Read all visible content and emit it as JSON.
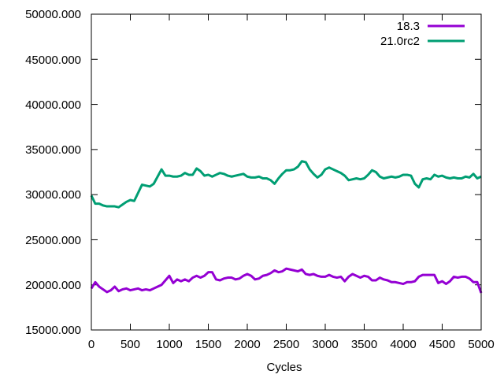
{
  "chart_data": {
    "type": "line",
    "title": "",
    "xlabel": "Cycles",
    "ylabel": "",
    "xlim": [
      0,
      5000
    ],
    "ylim": [
      15000,
      50000
    ],
    "grid": false,
    "legend_position": "top-right",
    "xticks": [
      "0",
      "500",
      "1000",
      "1500",
      "2000",
      "2500",
      "3000",
      "3500",
      "4000",
      "4500",
      "5000"
    ],
    "yticks": [
      "15000.000",
      "20000.000",
      "25000.000",
      "30000.000",
      "35000.000",
      "40000.000",
      "45000.000",
      "50000.000"
    ],
    "x": [
      0,
      50,
      100,
      150,
      200,
      250,
      300,
      350,
      400,
      450,
      500,
      550,
      600,
      650,
      700,
      750,
      800,
      850,
      900,
      950,
      1000,
      1050,
      1100,
      1150,
      1200,
      1250,
      1300,
      1350,
      1400,
      1450,
      1500,
      1550,
      1600,
      1650,
      1700,
      1750,
      1800,
      1850,
      1900,
      1950,
      2000,
      2050,
      2100,
      2150,
      2200,
      2250,
      2300,
      2350,
      2400,
      2450,
      2500,
      2550,
      2600,
      2650,
      2700,
      2750,
      2800,
      2850,
      2900,
      2950,
      3000,
      3050,
      3100,
      3150,
      3200,
      3250,
      3300,
      3350,
      3400,
      3450,
      3500,
      3550,
      3600,
      3650,
      3700,
      3750,
      3800,
      3850,
      3900,
      3950,
      4000,
      4050,
      4100,
      4150,
      4200,
      4250,
      4300,
      4350,
      4400,
      4450,
      4500,
      4550,
      4600,
      4650,
      4700,
      4750,
      4800,
      4850,
      4900,
      4950,
      5000
    ],
    "series": [
      {
        "name": "18.3",
        "color": "#9400d3",
        "values": [
          19600,
          20300,
          19800,
          19500,
          19200,
          19400,
          19800,
          19300,
          19500,
          19600,
          19400,
          19500,
          19600,
          19400,
          19500,
          19400,
          19600,
          19800,
          20000,
          20500,
          21000,
          20200,
          20600,
          20400,
          20600,
          20400,
          20800,
          21000,
          20800,
          21000,
          21400,
          21400,
          20600,
          20500,
          20700,
          20800,
          20800,
          20600,
          20700,
          21000,
          21200,
          21000,
          20600,
          20700,
          21000,
          21100,
          21300,
          21600,
          21400,
          21500,
          21800,
          21700,
          21600,
          21500,
          21700,
          21200,
          21100,
          21200,
          21000,
          20900,
          20900,
          21100,
          20900,
          20800,
          20900,
          20400,
          20900,
          21200,
          21000,
          20800,
          21000,
          20900,
          20500,
          20500,
          20800,
          20600,
          20500,
          20300,
          20300,
          20200,
          20100,
          20300,
          20300,
          20400,
          20900,
          21100,
          21100,
          21100,
          21100,
          20200,
          20400,
          20100,
          20400,
          20900,
          20800,
          20900,
          20900,
          20700,
          20300,
          20300,
          19100
        ]
      },
      {
        "name": "21.0rc2",
        "color": "#009e73",
        "values": [
          29900,
          29000,
          29000,
          28800,
          28700,
          28700,
          28700,
          28600,
          28900,
          29200,
          29400,
          29300,
          30200,
          31100,
          31000,
          30900,
          31200,
          32000,
          32800,
          32100,
          32100,
          32000,
          32000,
          32100,
          32400,
          32200,
          32200,
          32900,
          32600,
          32100,
          32200,
          32000,
          32200,
          32400,
          32300,
          32100,
          32000,
          32100,
          32200,
          32300,
          32000,
          31900,
          31900,
          32000,
          31800,
          31800,
          31600,
          31200,
          31800,
          32300,
          32700,
          32700,
          32800,
          33100,
          33700,
          33600,
          32800,
          32300,
          31900,
          32200,
          32800,
          33000,
          32800,
          32600,
          32400,
          32100,
          31600,
          31700,
          31800,
          31700,
          31800,
          32200,
          32700,
          32500,
          32000,
          31800,
          31900,
          32000,
          31900,
          32000,
          32200,
          32200,
          32100,
          31200,
          30800,
          31700,
          31800,
          31700,
          32200,
          32000,
          32100,
          31900,
          31800,
          31900,
          31800,
          31800,
          32000,
          31900,
          32300,
          31800,
          32000
        ]
      }
    ]
  }
}
